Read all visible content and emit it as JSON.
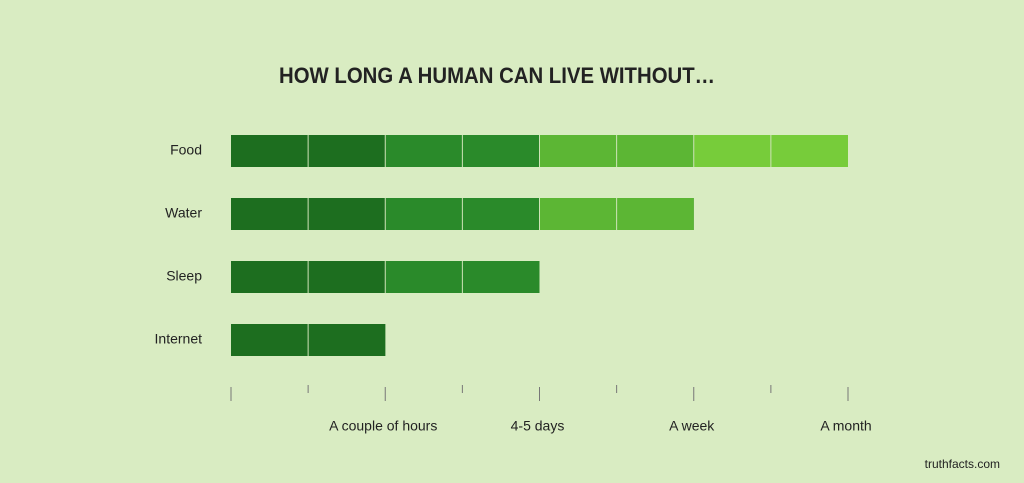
{
  "chart_data": {
    "type": "bar",
    "orientation": "horizontal",
    "title": "HOW LONG A HUMAN CAN LIVE WITHOUT…",
    "categories": [
      "Food",
      "Water",
      "Sleep",
      "Internet"
    ],
    "values": [
      8,
      6,
      4,
      2
    ],
    "segment_colors": [
      "#1d6e1f",
      "#1d6e1f",
      "#2a8a2a",
      "#2a8a2a",
      "#5cb634",
      "#5cb634",
      "#77cc3a",
      "#77cc3a"
    ],
    "xlim": [
      0,
      8
    ],
    "xticks": [
      {
        "value": 0,
        "label": null
      },
      {
        "value": 1,
        "label": null
      },
      {
        "value": 2,
        "label": "A couple of hours"
      },
      {
        "value": 3,
        "label": null
      },
      {
        "value": 4,
        "label": "4-5 days"
      },
      {
        "value": 5,
        "label": null
      },
      {
        "value": 6,
        "label": "A week"
      },
      {
        "value": 7,
        "label": null
      },
      {
        "value": 8,
        "label": "A month"
      }
    ],
    "source": "truthfacts.com"
  }
}
